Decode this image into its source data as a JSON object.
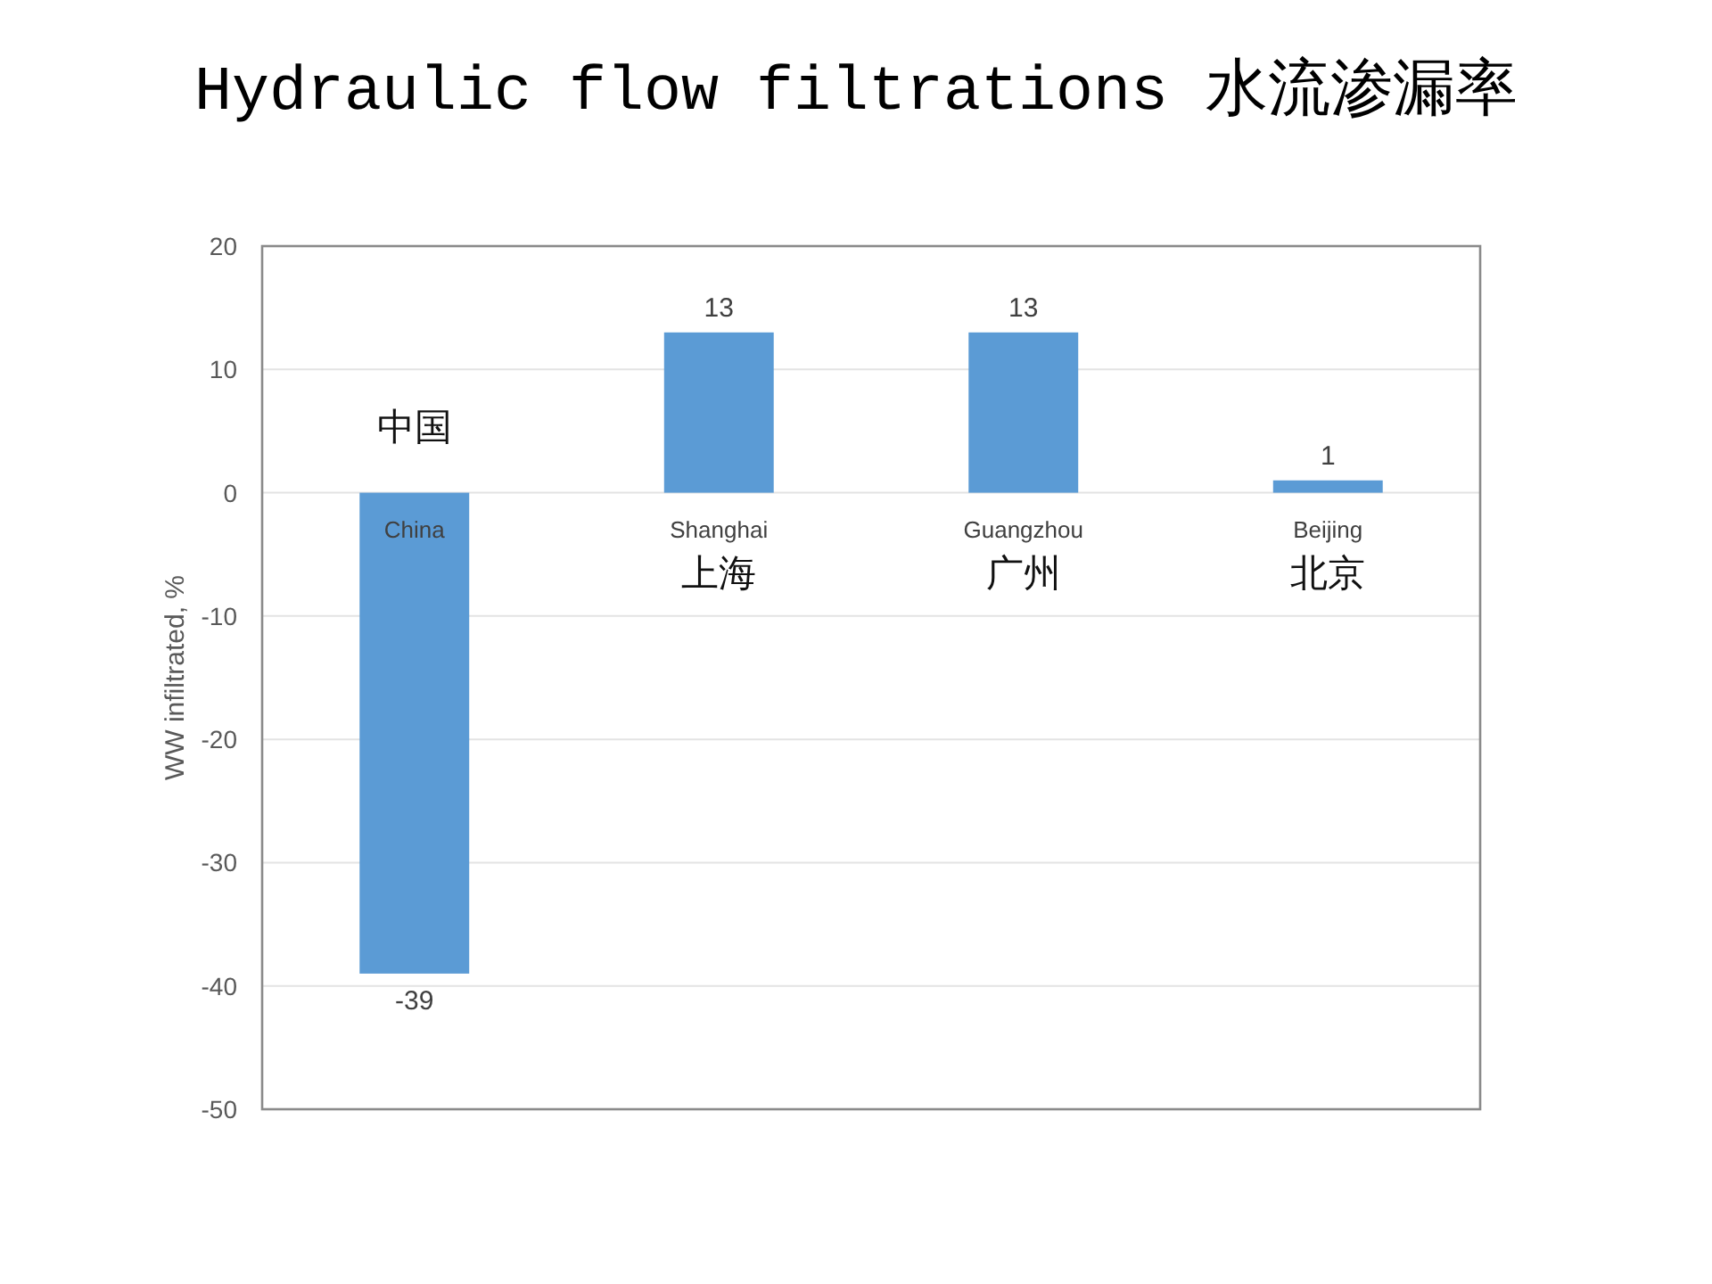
{
  "chart_data": {
    "type": "bar",
    "title": "Hydraulic flow filtrations 水流渗漏率",
    "ylabel": "WW infiltrated, %",
    "categories": [
      "China",
      "Shanghai",
      "Guangzhou",
      "Beijing"
    ],
    "values": [
      -39,
      13,
      13,
      1
    ],
    "color": "#5b9bd5",
    "ylim": [
      -50,
      20
    ],
    "yticks": [
      -50,
      -40,
      -30,
      -20,
      -10,
      0,
      10,
      20
    ],
    "grid": "y",
    "data_labels": true,
    "annotations": [
      "中国",
      "上海",
      "广州",
      "北京"
    ]
  }
}
